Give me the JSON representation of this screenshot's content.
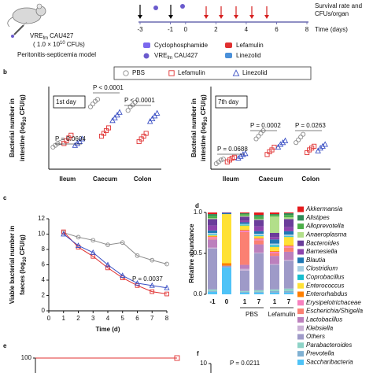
{
  "schematic": {
    "strain": [
      "VRE",
      "fm",
      "CAU427"
    ],
    "dose": [
      "( 1.0 × 10",
      "10",
      "CFUs)"
    ],
    "model": "Peritonitis-septicemia model",
    "timeline_ticks": [
      -3,
      -1,
      0,
      2,
      4,
      6,
      8
    ],
    "time_label": "Time (days)",
    "outcome": [
      "Survival rate and",
      "CFUs/organ"
    ],
    "legend": [
      "Cyclophosphamide",
      "Lefamulin",
      "Linezolid"
    ],
    "legend_strain": [
      "VRE",
      "fm",
      "CAU427"
    ]
  },
  "panel_labels": [
    "b",
    "c",
    "d",
    "e",
    "f"
  ],
  "chart_data": [
    {
      "type": "scatter",
      "title": "1st day",
      "categories": [
        "Ileum",
        "Caecum",
        "Colon"
      ],
      "ylabel": [
        "Bacterial number in",
        "intestine (log",
        "10",
        "CFU/g)"
      ],
      "ylim": [
        2,
        11
      ],
      "series": [
        {
          "name": "PBS",
          "color": "#8c8c8c",
          "values": [
            [
              4.4,
              4.6,
              4.8,
              4.9
            ],
            [
              8.8,
              9.1,
              9.4,
              9.6
            ],
            [
              8.4,
              8.8,
              9.0,
              9.3
            ]
          ]
        },
        {
          "name": "Lefamulin",
          "color": "#e03030",
          "values": [
            [
              4.8,
              5.1,
              5.4,
              5.7
            ],
            [
              5.6,
              5.9,
              6.2,
              6.5
            ],
            [
              5.0,
              5.3,
              5.6,
              5.9
            ]
          ]
        },
        {
          "name": "Linezolid",
          "color": "#3a4fc4",
          "values": [
            [
              4.6,
              4.8,
              5.0,
              5.3
            ],
            [
              7.3,
              7.6,
              7.9,
              8.2
            ],
            [
              7.2,
              7.5,
              7.8,
              8.1
            ]
          ]
        }
      ],
      "annotations": [
        "P = 0.0604",
        "P < 0.0001",
        "P < 0.0001"
      ]
    },
    {
      "type": "scatter",
      "title": "7th day",
      "categories": [
        "Ileum",
        "Caecum",
        "Colon"
      ],
      "ylabel": [
        "Bacterial number in",
        "intestine (log",
        "10",
        "CFU/g)"
      ],
      "ylim": [
        2,
        11
      ],
      "series": [
        {
          "name": "PBS",
          "color": "#8c8c8c",
          "values": [
            [
              2.6,
              2.8,
              3.0,
              3.1
            ],
            [
              5.3,
              5.6,
              5.9,
              6.2
            ],
            [
              4.9,
              5.2,
              5.5,
              5.8
            ]
          ]
        },
        {
          "name": "Lefamulin",
          "color": "#e03030",
          "values": [
            [
              2.8,
              3.0,
              3.2,
              3.3
            ],
            [
              3.6,
              3.9,
              4.1,
              4.4
            ],
            [
              3.8,
              4.1,
              4.3,
              4.5
            ]
          ]
        },
        {
          "name": "Linezolid",
          "color": "#3a4fc4",
          "values": [
            [
              3.2,
              3.4,
              3.6,
              3.7
            ],
            [
              4.4,
              4.7,
              4.9,
              5.1
            ],
            [
              4.0,
              4.3,
              4.5,
              4.7
            ]
          ]
        }
      ],
      "annotations": [
        "P = 0.0688",
        "P = 0.0002",
        "P = 0.0263"
      ]
    },
    {
      "type": "line",
      "x": [
        1,
        2,
        3,
        4,
        5,
        6,
        7,
        8
      ],
      "xlim": [
        0,
        8
      ],
      "xticks": [
        0,
        1,
        2,
        3,
        4,
        5,
        6,
        7,
        8
      ],
      "ylim": [
        0,
        12
      ],
      "yticks": [
        0,
        2,
        4,
        6,
        8,
        10,
        12
      ],
      "xlabel": "Time (d)",
      "ylabel": [
        "Viable bacterial number in",
        "faeces (log",
        "10",
        "CFU/g)"
      ],
      "series": [
        {
          "name": "PBS",
          "color": "#8c8c8c",
          "values": [
            10.2,
            9.6,
            9.2,
            8.6,
            8.9,
            7.2,
            6.6,
            6.1
          ]
        },
        {
          "name": "Lefamulin",
          "color": "#e03030",
          "values": [
            10.3,
            8.3,
            7.1,
            5.6,
            4.3,
            3.3,
            2.5,
            2.2
          ]
        },
        {
          "name": "Linezolid",
          "color": "#3a4fc4",
          "values": [
            10.0,
            8.5,
            7.6,
            6.0,
            4.6,
            3.6,
            3.3,
            3.0
          ]
        }
      ],
      "annotations": [
        "P = 0.0037"
      ]
    },
    {
      "type": "stacked_bar",
      "categories": [
        "-1",
        "0",
        "1",
        "7",
        "1",
        "7"
      ],
      "groups": [
        "PBS",
        "Lefamulin"
      ],
      "ylabel": "Relative abundance",
      "ylim": [
        0,
        1
      ],
      "yticks": [
        {
          "value": 0,
          "label": "0.0"
        },
        {
          "value": 0.5,
          "label": "0.5"
        },
        {
          "value": 1,
          "label": "1.0"
        }
      ],
      "series": [
        {
          "name": "Akkermansia",
          "color": "#e41a1c",
          "values": [
            0.02,
            0,
            0.01,
            0.03,
            0.02,
            0.01
          ]
        },
        {
          "name": "Alistipes",
          "color": "#2e8b57",
          "values": [
            0.02,
            0,
            0.01,
            0.02,
            0.01,
            0.02
          ]
        },
        {
          "name": "Alloprevotella",
          "color": "#4daf4a",
          "values": [
            0.03,
            0,
            0.02,
            0.03,
            0.02,
            0.03
          ]
        },
        {
          "name": "Anaeroplasma",
          "color": "#b2df8a",
          "values": [
            0.01,
            0,
            0.01,
            0.01,
            0.2,
            0.02
          ]
        },
        {
          "name": "Bacteroides",
          "color": "#6a3d9a",
          "values": [
            0.08,
            0.01,
            0.05,
            0.08,
            0.05,
            0.1
          ]
        },
        {
          "name": "Barnesiella",
          "color": "#8e44ad",
          "values": [
            0.06,
            0,
            0.02,
            0.06,
            0.03,
            0.05
          ]
        },
        {
          "name": "Blautia",
          "color": "#1f78b4",
          "values": [
            0.03,
            0.01,
            0.02,
            0.03,
            0.05,
            0.04
          ]
        },
        {
          "name": "Clostridium",
          "color": "#a6cee3",
          "values": [
            0.02,
            0,
            0.01,
            0.02,
            0.02,
            0.02
          ]
        },
        {
          "name": "Coprobacillus",
          "color": "#17becf",
          "values": [
            0.01,
            0,
            0.01,
            0.01,
            0.02,
            0.01
          ]
        },
        {
          "name": "Enterococcus",
          "color": "#ffe135",
          "values": [
            0.01,
            0.6,
            0.05,
            0.02,
            0.05,
            0.1
          ]
        },
        {
          "name": "Enterorhabdus",
          "color": "#ff7f00",
          "values": [
            0.01,
            0.03,
            0.01,
            0.01,
            0.01,
            0.01
          ]
        },
        {
          "name": "Erysipelotrichaceae",
          "color": "#f781bf",
          "values": [
            0.02,
            0,
            0.02,
            0.02,
            0.02,
            0.02
          ]
        },
        {
          "name": "Escherichia/Shigella",
          "color": "#fb8072",
          "values": [
            0.01,
            0,
            0.4,
            0.05,
            0.03,
            0.05
          ]
        },
        {
          "name": "Lactobacillus",
          "color": "#bc80bd",
          "values": [
            0.1,
            0,
            0.05,
            0.1,
            0.1,
            0.1
          ]
        },
        {
          "name": "Klebsiella",
          "color": "#cab2d6",
          "values": [
            0.01,
            0,
            0.02,
            0.01,
            0.01,
            0.01
          ]
        },
        {
          "name": "Others",
          "color": "#9e9ac8",
          "values": [
            0.5,
            0.02,
            0.25,
            0.45,
            0.3,
            0.34
          ]
        },
        {
          "name": "Parabacteroides",
          "color": "#8dd3c7",
          "values": [
            0.02,
            0,
            0.01,
            0.02,
            0.02,
            0.03
          ]
        },
        {
          "name": "Prevotella",
          "color": "#80b1d3",
          "values": [
            0.01,
            0,
            0.01,
            0.01,
            0.02,
            0.02
          ]
        },
        {
          "name": "Saccharibacteria",
          "color": "#4fc3f7",
          "values": [
            0.03,
            0.33,
            0.02,
            0.02,
            0.02,
            0.02
          ]
        }
      ]
    },
    {
      "type": "line",
      "x": [
        0,
        2,
        8
      ],
      "xlim": [
        0,
        8
      ],
      "ylim": [
        0,
        100
      ],
      "yticks": [
        100
      ],
      "series": [
        {
          "name": "PBS",
          "color": "#8c8c8c",
          "values": [
            100,
            100,
            null
          ]
        },
        {
          "name": "Lefamulin",
          "color": "#e03030",
          "values": [
            100,
            100,
            100
          ]
        }
      ]
    },
    {
      "type": "scatter",
      "ylim": [
        0,
        10
      ],
      "yticks": [
        10
      ],
      "annotations": [
        "P = 0.0211"
      ]
    }
  ]
}
